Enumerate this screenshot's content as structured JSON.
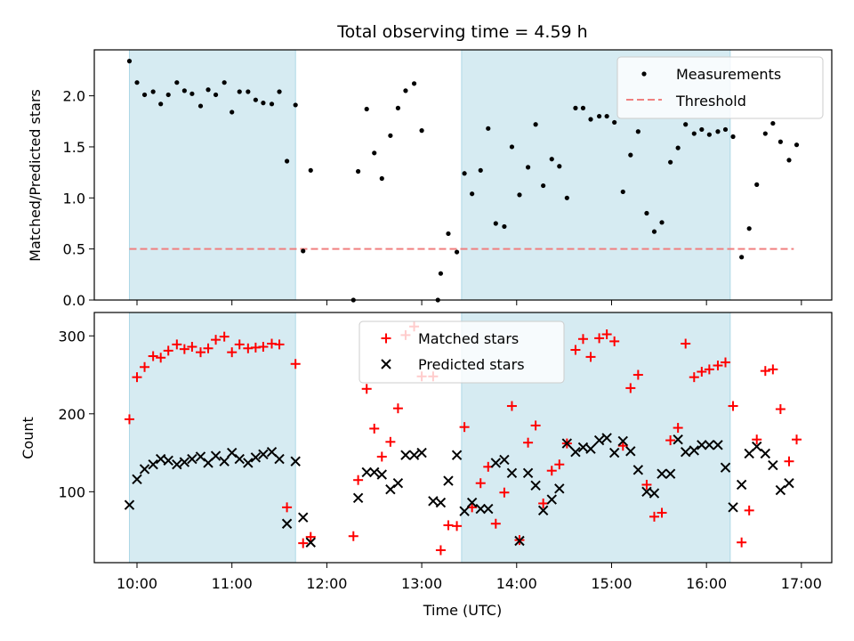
{
  "chart_data": [
    {
      "type": "scatter",
      "title": "Total observing time = 4.59 h",
      "ylabel": "Matched/Predicted stars",
      "xlabel": "",
      "xlim": [
        9.55,
        17.32
      ],
      "ylim": [
        0.0,
        2.45
      ],
      "yticks": [
        0.0,
        0.5,
        1.0,
        1.5,
        2.0
      ],
      "ytick_labels": [
        "0.0",
        "0.5",
        "1.0",
        "1.5",
        "2.0"
      ],
      "shaded_intervals": [
        [
          9.92,
          11.67
        ],
        [
          13.42,
          16.25
        ]
      ],
      "legend": {
        "placement": "top-right",
        "entries": [
          "Measurements",
          "Threshold"
        ]
      },
      "threshold": {
        "name": "Threshold",
        "value": 0.5,
        "x_range": [
          9.92,
          16.92
        ],
        "color": "#f08080"
      },
      "series": [
        {
          "name": "Measurements",
          "color": "#000000",
          "points": [
            [
              9.92,
              2.34
            ],
            [
              10.0,
              2.13
            ],
            [
              10.08,
              2.01
            ],
            [
              10.17,
              2.04
            ],
            [
              10.25,
              1.92
            ],
            [
              10.33,
              2.01
            ],
            [
              10.42,
              2.13
            ],
            [
              10.5,
              2.05
            ],
            [
              10.58,
              2.02
            ],
            [
              10.67,
              1.9
            ],
            [
              10.75,
              2.06
            ],
            [
              10.83,
              2.01
            ],
            [
              10.92,
              2.13
            ],
            [
              11.0,
              1.84
            ],
            [
              11.08,
              2.04
            ],
            [
              11.17,
              2.04
            ],
            [
              11.25,
              1.96
            ],
            [
              11.33,
              1.93
            ],
            [
              11.42,
              1.92
            ],
            [
              11.5,
              2.04
            ],
            [
              11.58,
              1.36
            ],
            [
              11.67,
              1.91
            ],
            [
              11.75,
              0.48
            ],
            [
              11.83,
              1.27
            ],
            [
              12.28,
              0.0
            ],
            [
              12.33,
              1.26
            ],
            [
              12.42,
              1.87
            ],
            [
              12.5,
              1.44
            ],
            [
              12.58,
              1.19
            ],
            [
              12.67,
              1.61
            ],
            [
              12.75,
              1.88
            ],
            [
              12.83,
              2.05
            ],
            [
              12.92,
              2.12
            ],
            [
              13.0,
              1.66
            ],
            [
              13.17,
              0.0
            ],
            [
              13.2,
              0.26
            ],
            [
              13.28,
              0.65
            ],
            [
              13.37,
              0.47
            ],
            [
              13.45,
              1.24
            ],
            [
              13.53,
              1.04
            ],
            [
              13.62,
              1.27
            ],
            [
              13.7,
              1.68
            ],
            [
              13.78,
              0.75
            ],
            [
              13.87,
              0.72
            ],
            [
              13.95,
              1.5
            ],
            [
              14.03,
              1.03
            ],
            [
              14.12,
              1.3
            ],
            [
              14.2,
              1.72
            ],
            [
              14.28,
              1.12
            ],
            [
              14.37,
              1.38
            ],
            [
              14.45,
              1.31
            ],
            [
              14.53,
              1.0
            ],
            [
              14.62,
              1.88
            ],
            [
              14.7,
              1.88
            ],
            [
              14.78,
              1.77
            ],
            [
              14.87,
              1.8
            ],
            [
              14.95,
              1.8
            ],
            [
              15.03,
              1.74
            ],
            [
              15.12,
              1.06
            ],
            [
              15.2,
              1.42
            ],
            [
              15.28,
              1.65
            ],
            [
              15.37,
              0.85
            ],
            [
              15.45,
              0.67
            ],
            [
              15.53,
              0.76
            ],
            [
              15.62,
              1.35
            ],
            [
              15.7,
              1.49
            ],
            [
              15.78,
              1.72
            ],
            [
              15.87,
              1.63
            ],
            [
              15.95,
              1.67
            ],
            [
              16.03,
              1.62
            ],
            [
              16.12,
              1.65
            ],
            [
              16.2,
              1.67
            ],
            [
              16.28,
              1.6
            ],
            [
              16.37,
              0.42
            ],
            [
              16.45,
              0.7
            ],
            [
              16.53,
              1.13
            ],
            [
              16.62,
              1.63
            ],
            [
              16.7,
              1.73
            ],
            [
              16.78,
              1.55
            ],
            [
              16.87,
              1.37
            ],
            [
              16.95,
              1.52
            ]
          ]
        }
      ]
    },
    {
      "type": "scatter",
      "title": "",
      "xlabel": "Time (UTC)",
      "ylabel": "Count",
      "xlim": [
        9.55,
        17.32
      ],
      "ylim": [
        9,
        330
      ],
      "xticks": [
        10,
        11,
        12,
        13,
        14,
        15,
        16,
        17
      ],
      "xtick_labels": [
        "10:00",
        "11:00",
        "12:00",
        "13:00",
        "14:00",
        "15:00",
        "16:00",
        "17:00"
      ],
      "yticks": [
        100,
        200,
        300
      ],
      "ytick_labels": [
        "100",
        "200",
        "300"
      ],
      "shaded_intervals": [
        [
          9.92,
          11.67
        ],
        [
          13.42,
          16.25
        ]
      ],
      "legend": {
        "placement": "top-center",
        "entries": [
          "Matched stars",
          "Predicted stars"
        ]
      },
      "series": [
        {
          "name": "Matched stars",
          "marker": "+",
          "color": "#ff0000",
          "points": [
            [
              9.92,
              193
            ],
            [
              10.0,
              247
            ],
            [
              10.08,
              260
            ],
            [
              10.17,
              274
            ],
            [
              10.25,
              272
            ],
            [
              10.33,
              281
            ],
            [
              10.42,
              289
            ],
            [
              10.5,
              283
            ],
            [
              10.58,
              286
            ],
            [
              10.67,
              279
            ],
            [
              10.75,
              284
            ],
            [
              10.83,
              295
            ],
            [
              10.92,
              299
            ],
            [
              11.0,
              279
            ],
            [
              11.08,
              289
            ],
            [
              11.17,
              284
            ],
            [
              11.25,
              285
            ],
            [
              11.33,
              286
            ],
            [
              11.42,
              290
            ],
            [
              11.5,
              289
            ],
            [
              11.58,
              80
            ],
            [
              11.67,
              264
            ],
            [
              11.75,
              34
            ],
            [
              11.83,
              42
            ],
            [
              12.28,
              43
            ],
            [
              12.33,
              115
            ],
            [
              12.42,
              232
            ],
            [
              12.5,
              181
            ],
            [
              12.58,
              145
            ],
            [
              12.67,
              164
            ],
            [
              12.75,
              207
            ],
            [
              12.83,
              301
            ],
            [
              12.92,
              312
            ],
            [
              13.0,
              248
            ],
            [
              13.12,
              248
            ],
            [
              13.2,
              25
            ],
            [
              13.28,
              57
            ],
            [
              13.37,
              56
            ],
            [
              13.45,
              183
            ],
            [
              13.53,
              80
            ],
            [
              13.62,
              111
            ],
            [
              13.7,
              132
            ],
            [
              13.78,
              59
            ],
            [
              13.87,
              99
            ],
            [
              13.95,
              210
            ],
            [
              14.03,
              38
            ],
            [
              14.12,
              163
            ],
            [
              14.2,
              185
            ],
            [
              14.28,
              85
            ],
            [
              14.37,
              127
            ],
            [
              14.45,
              135
            ],
            [
              14.53,
              162
            ],
            [
              14.62,
              282
            ],
            [
              14.7,
              296
            ],
            [
              14.78,
              273
            ],
            [
              14.87,
              297
            ],
            [
              14.95,
              302
            ],
            [
              15.03,
              293
            ],
            [
              15.12,
              159
            ],
            [
              15.2,
              233
            ],
            [
              15.28,
              250
            ],
            [
              15.37,
              109
            ],
            [
              15.45,
              68
            ],
            [
              15.53,
              73
            ],
            [
              15.62,
              166
            ],
            [
              15.7,
              182
            ],
            [
              15.78,
              290
            ],
            [
              15.87,
              247
            ],
            [
              15.95,
              254
            ],
            [
              16.03,
              257
            ],
            [
              16.12,
              262
            ],
            [
              16.2,
              266
            ],
            [
              16.28,
              210
            ],
            [
              16.37,
              35
            ],
            [
              16.45,
              76
            ],
            [
              16.53,
              167
            ],
            [
              16.62,
              255
            ],
            [
              16.7,
              257
            ],
            [
              16.78,
              206
            ],
            [
              16.87,
              139
            ],
            [
              16.95,
              167
            ]
          ]
        },
        {
          "name": "Predicted stars",
          "marker": "x",
          "color": "#000000",
          "points": [
            [
              9.92,
              83
            ],
            [
              10.0,
              116
            ],
            [
              10.08,
              129
            ],
            [
              10.17,
              135
            ],
            [
              10.25,
              142
            ],
            [
              10.33,
              140
            ],
            [
              10.42,
              135
            ],
            [
              10.5,
              138
            ],
            [
              10.58,
              142
            ],
            [
              10.67,
              145
            ],
            [
              10.75,
              137
            ],
            [
              10.83,
              146
            ],
            [
              10.92,
              139
            ],
            [
              11.0,
              150
            ],
            [
              11.08,
              142
            ],
            [
              11.17,
              137
            ],
            [
              11.25,
              144
            ],
            [
              11.33,
              148
            ],
            [
              11.42,
              151
            ],
            [
              11.5,
              142
            ],
            [
              11.58,
              59
            ],
            [
              11.67,
              139
            ],
            [
              11.75,
              67
            ],
            [
              11.83,
              35
            ],
            [
              12.33,
              92
            ],
            [
              12.42,
              125
            ],
            [
              12.5,
              125
            ],
            [
              12.58,
              122
            ],
            [
              12.67,
              103
            ],
            [
              12.75,
              111
            ],
            [
              12.83,
              147
            ],
            [
              12.92,
              147
            ],
            [
              13.0,
              150
            ],
            [
              13.12,
              88
            ],
            [
              13.2,
              86
            ],
            [
              13.28,
              114
            ],
            [
              13.37,
              147
            ],
            [
              13.45,
              75
            ],
            [
              13.53,
              86
            ],
            [
              13.62,
              78
            ],
            [
              13.7,
              78
            ],
            [
              13.78,
              137
            ],
            [
              13.87,
              141
            ],
            [
              13.95,
              124
            ],
            [
              14.03,
              37
            ],
            [
              14.12,
              124
            ],
            [
              14.2,
              108
            ],
            [
              14.28,
              76
            ],
            [
              14.37,
              90
            ],
            [
              14.45,
              104
            ],
            [
              14.53,
              162
            ],
            [
              14.62,
              151
            ],
            [
              14.7,
              157
            ],
            [
              14.78,
              155
            ],
            [
              14.87,
              166
            ],
            [
              14.95,
              169
            ],
            [
              15.03,
              150
            ],
            [
              15.12,
              165
            ],
            [
              15.2,
              152
            ],
            [
              15.28,
              128
            ],
            [
              15.37,
              100
            ],
            [
              15.45,
              98
            ],
            [
              15.53,
              123
            ],
            [
              15.62,
              123
            ],
            [
              15.7,
              167
            ],
            [
              15.78,
              151
            ],
            [
              15.87,
              153
            ],
            [
              15.95,
              160
            ],
            [
              16.03,
              160
            ],
            [
              16.12,
              160
            ],
            [
              16.2,
              131
            ],
            [
              16.28,
              80
            ],
            [
              16.37,
              109
            ],
            [
              16.45,
              149
            ],
            [
              16.53,
              158
            ],
            [
              16.62,
              149
            ],
            [
              16.7,
              134
            ],
            [
              16.78,
              102
            ],
            [
              16.87,
              111
            ]
          ]
        }
      ]
    }
  ]
}
